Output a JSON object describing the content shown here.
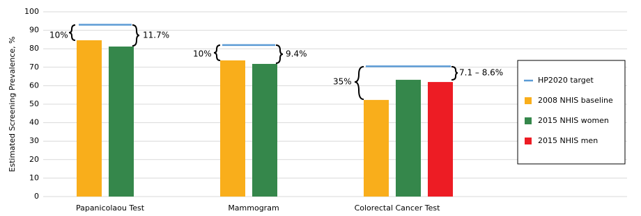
{
  "chart_data": {
    "type": "bar",
    "y_label": "Estimated Screening Prevalence, %",
    "categories": [
      "Papanicolaou Test",
      "Mammogram",
      "Colorectal Cancer Test"
    ],
    "series": [
      {
        "name": "HP2020 target",
        "color": "#5b9bd5",
        "mark": "line",
        "values": [
          93,
          82,
          70.5
        ]
      },
      {
        "name": "2008 NHIS baseline",
        "color": "#f9ae1b",
        "mark": "bar",
        "values": [
          84.6,
          73.7,
          52.3
        ]
      },
      {
        "name": "2015 NHIS women",
        "color": "#35874b",
        "mark": "bar",
        "values": [
          81.2,
          71.8,
          63.2
        ]
      },
      {
        "name": "2015 NHIS men",
        "color": "#ed1c24",
        "mark": "bar",
        "values": [
          null,
          null,
          62
        ]
      }
    ],
    "annotations": [
      "10%",
      "11.7%",
      "10%",
      "9.4%",
      "35%",
      "7.1 – 8.6%"
    ],
    "ylim": [
      0,
      100
    ],
    "yticks": [
      0,
      10,
      20,
      30,
      40,
      50,
      60,
      70,
      80,
      90,
      100
    ],
    "grid": true
  }
}
